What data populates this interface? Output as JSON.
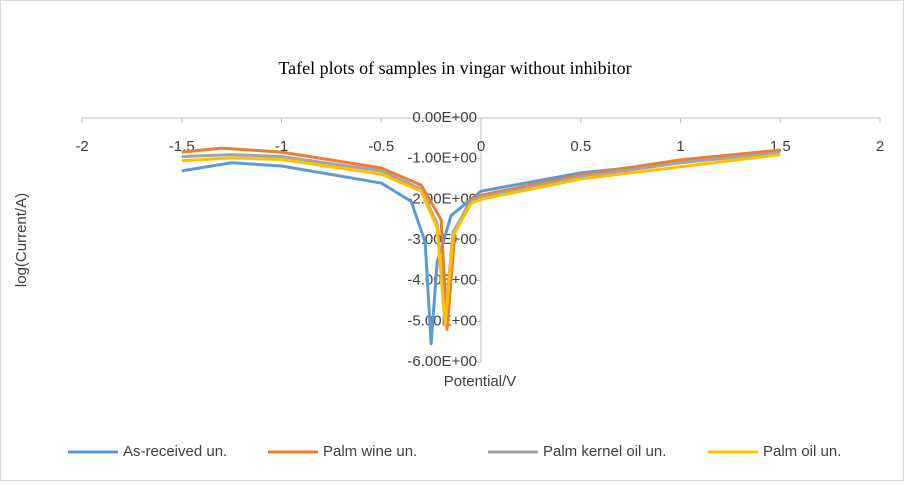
{
  "chart_data": {
    "type": "line",
    "title": "Tafel plots of samples in vingar without inhibitor",
    "x_label": "Potential/V",
    "y_label": "log(Current/A)",
    "xlim": [
      -2,
      2
    ],
    "xticks": [
      -2,
      -1.5,
      -1,
      -0.5,
      0,
      0.5,
      1,
      1.5,
      2
    ],
    "ylim": [
      -6,
      0
    ],
    "yticks": [
      {
        "value": 0,
        "label": "0.00E+00"
      },
      {
        "value": -1,
        "label": "-1.00E+00"
      },
      {
        "value": -2,
        "label": "-2.00E+00"
      },
      {
        "value": -3,
        "label": "-3.00E+00"
      },
      {
        "value": -4,
        "label": "-4.00E+00"
      },
      {
        "value": -5,
        "label": "-5.00E+00"
      },
      {
        "value": -6,
        "label": "-6.00E+00"
      }
    ],
    "legend": "bottom",
    "series": [
      {
        "name": "As-received un.",
        "color": "#5b9bd5",
        "x": [
          -1.5,
          -1.25,
          -1,
          -0.5,
          -0.35,
          -0.28,
          -0.25,
          -0.22,
          -0.15,
          0,
          0.5,
          1,
          1.5
        ],
        "values": [
          -1.3,
          -1.1,
          -1.18,
          -1.6,
          -2.05,
          -3.05,
          -5.55,
          -3.55,
          -2.4,
          -1.8,
          -1.35,
          -1.1,
          -0.8
        ]
      },
      {
        "name": "Palm wine un.",
        "color": "#ed7d31",
        "x": [
          -1.5,
          -1.3,
          -1,
          -0.5,
          -0.3,
          -0.2,
          -0.17,
          -0.13,
          -0.05,
          0,
          0.5,
          1,
          1.5
        ],
        "values": [
          -0.84,
          -0.74,
          -0.84,
          -1.23,
          -1.65,
          -2.5,
          -5.2,
          -2.75,
          -2.0,
          -1.9,
          -1.4,
          -1.03,
          -0.79
        ]
      },
      {
        "name": "Palm kernel oil un.",
        "color": "#a5a5a5",
        "x": [
          -1.5,
          -1.25,
          -1,
          -0.5,
          -0.3,
          -0.22,
          -0.18,
          -0.14,
          -0.05,
          0,
          0.5,
          1,
          1.5
        ],
        "values": [
          -0.95,
          -0.9,
          -0.95,
          -1.3,
          -1.75,
          -2.6,
          -5.0,
          -2.8,
          -2.05,
          -1.95,
          -1.45,
          -1.1,
          -0.85
        ]
      },
      {
        "name": "Palm oil un.",
        "color": "#ffc000",
        "x": [
          -1.5,
          -1.25,
          -1,
          -0.5,
          -0.3,
          -0.22,
          -0.18,
          -0.14,
          -0.05,
          0,
          0.5,
          1,
          1.5
        ],
        "values": [
          -1.05,
          -0.98,
          -1.02,
          -1.38,
          -1.8,
          -2.7,
          -5.1,
          -2.9,
          -2.1,
          -2.0,
          -1.5,
          -1.2,
          -0.9
        ]
      }
    ]
  }
}
